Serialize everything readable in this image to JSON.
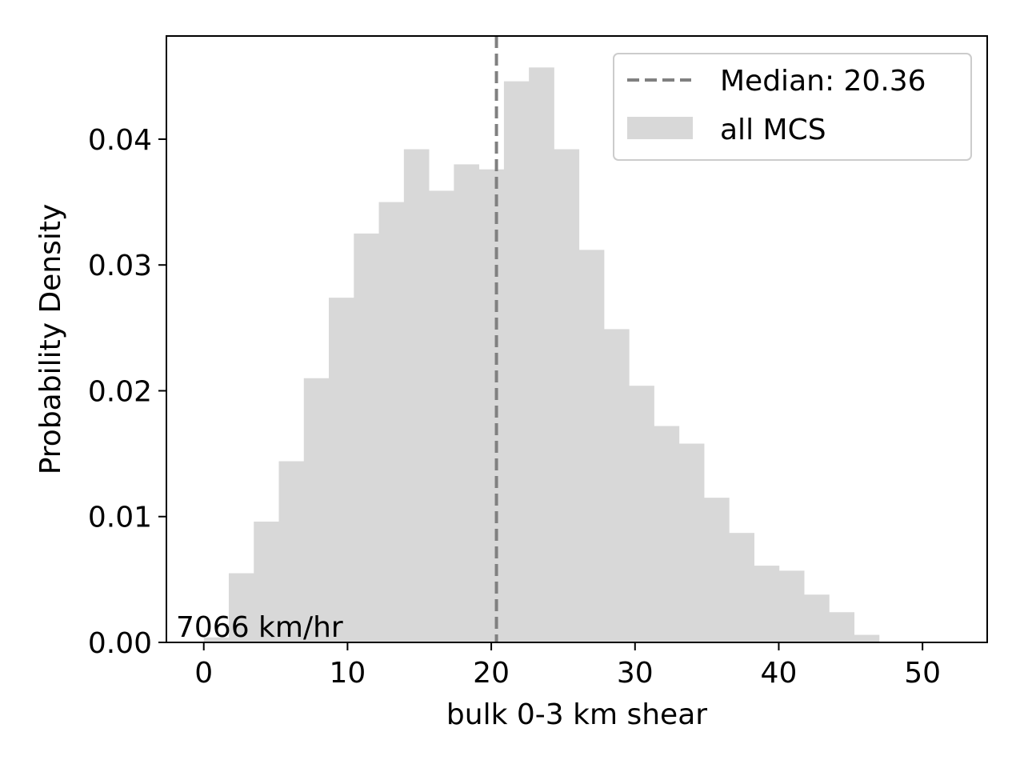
{
  "chart_data": {
    "type": "bar",
    "subtype": "histogram",
    "xlabel": "bulk 0-3 km shear",
    "ylabel": "Probability Density",
    "xlim": [
      -2.6,
      54.5
    ],
    "ylim": [
      0,
      0.0482
    ],
    "xticks": [
      0,
      10,
      20,
      30,
      40,
      50
    ],
    "xtick_labels": [
      "0",
      "10",
      "20",
      "30",
      "40",
      "50"
    ],
    "yticks": [
      0,
      0.01,
      0.02,
      0.03,
      0.04
    ],
    "ytick_labels": [
      "0.00",
      "0.01",
      "0.02",
      "0.03",
      "0.04"
    ],
    "bin_edges": [
      0.0,
      1.74,
      3.48,
      5.22,
      6.96,
      8.7,
      10.44,
      12.18,
      13.92,
      15.66,
      17.4,
      19.14,
      20.88,
      22.62,
      24.36,
      26.1,
      27.84,
      29.58,
      31.32,
      33.06,
      34.8,
      36.54,
      38.28,
      40.02,
      41.76,
      43.5,
      45.24,
      46.98,
      48.72,
      50.46,
      52.2
    ],
    "values": [
      0.0004,
      0.0055,
      0.0096,
      0.0144,
      0.021,
      0.0274,
      0.0325,
      0.035,
      0.0392,
      0.0359,
      0.038,
      0.0376,
      0.0446,
      0.0457,
      0.0392,
      0.0312,
      0.0249,
      0.0204,
      0.0172,
      0.0158,
      0.0115,
      0.0087,
      0.0061,
      0.0057,
      0.0038,
      0.0024,
      0.0006,
      0.0,
      0.0,
      0.0
    ],
    "median": 20.36,
    "series": [
      {
        "name": "all MCS",
        "color": "#d8d8d8"
      }
    ],
    "median_line": {
      "label": "Median: 20.36",
      "color": "#808080",
      "style": "dashed"
    },
    "legend": {
      "placement": "top-right"
    },
    "annotation": "7066 km/hr",
    "grid": false
  }
}
